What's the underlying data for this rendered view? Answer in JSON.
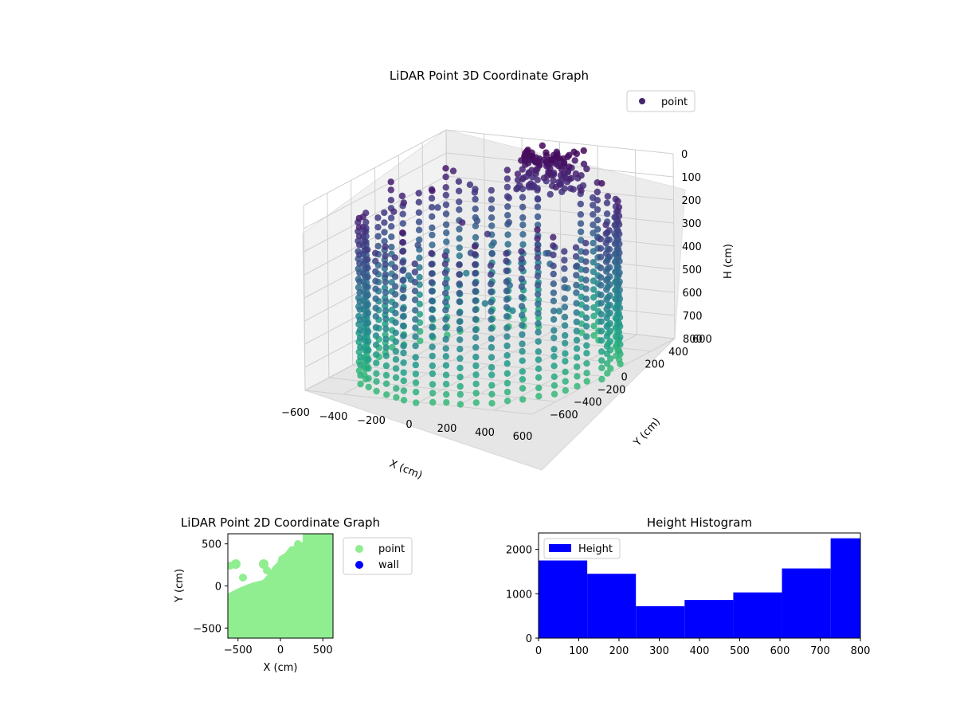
{
  "chart_data": [
    {
      "type": "scatter3d",
      "title": "LiDAR Point 3D Coordinate Graph",
      "xlabel": "X (cm)",
      "ylabel": "Y (cm)",
      "zlabel": "H (cm)",
      "xlim": [
        -600,
        600
      ],
      "ylim": [
        -600,
        600
      ],
      "zlim": [
        0,
        800
      ],
      "z_inverted": true,
      "x_ticks": [
        -600,
        -400,
        -200,
        0,
        200,
        400,
        600
      ],
      "y_ticks": [
        -600,
        -400,
        -200,
        0,
        200,
        400,
        600
      ],
      "z_ticks": [
        0,
        100,
        200,
        300,
        400,
        500,
        600,
        700,
        800
      ],
      "grid": true,
      "legend": {
        "position": "top-right",
        "entries": [
          {
            "label": "point",
            "color": "#46266b"
          }
        ]
      },
      "colormap": "viridis",
      "series": [
        {
          "name": "point",
          "structure": "cylindrical wall scan, radius about 600 cm, H 0-800 cm, open toward +Y"
        }
      ]
    },
    {
      "type": "scatter",
      "title": "LiDAR Point 2D Coordinate Graph",
      "xlabel": "X (cm)",
      "ylabel": "Y (cm)",
      "xlim": [
        -620,
        620
      ],
      "ylim": [
        -620,
        620
      ],
      "x_ticks": [
        -500,
        0,
        500
      ],
      "y_ticks": [
        -500,
        0,
        500
      ],
      "legend": {
        "position": "outside-right",
        "entries": [
          {
            "label": "point",
            "color": "#90ee90"
          },
          {
            "label": "wall",
            "color": "#0000ff"
          }
        ]
      },
      "series": [
        {
          "name": "point",
          "color": "#90ee90"
        },
        {
          "name": "wall",
          "color": "#0000ff"
        }
      ]
    },
    {
      "type": "bar",
      "title": "Height Histogram",
      "xlabel": "",
      "ylabel": "",
      "xlim": [
        0,
        800
      ],
      "ylim": [
        0,
        2370
      ],
      "x_ticks": [
        0,
        100,
        200,
        300,
        400,
        500,
        600,
        700,
        800
      ],
      "y_ticks": [
        0,
        1000,
        2000
      ],
      "bin_edges": [
        0,
        121,
        242,
        363,
        484,
        605,
        726,
        800
      ],
      "values": [
        1750,
        1450,
        720,
        860,
        1030,
        1570,
        2250
      ],
      "color": "#0000ff",
      "legend": {
        "position": "top-left",
        "entries": [
          {
            "label": "Height",
            "color": "#0000ff"
          }
        ]
      },
      "series": [
        {
          "name": "Height",
          "values": [
            1750,
            1450,
            720,
            860,
            1030,
            1570,
            2250
          ]
        }
      ]
    }
  ]
}
